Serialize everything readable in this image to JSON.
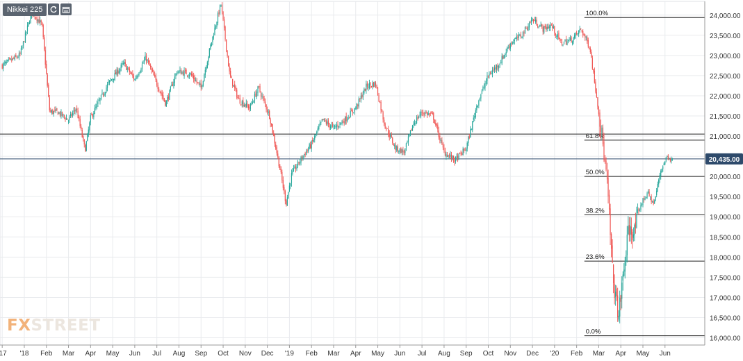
{
  "toolbar": {
    "title": "Nikkei 225",
    "refresh_icon": "refresh-icon",
    "calendar_icon": "calendar-icon"
  },
  "logo": {
    "part1": "FX",
    "part2": "STREET"
  },
  "colors": {
    "up": "#26a69a",
    "down": "#ef5350",
    "grid": "#e9ebee",
    "fib": "#222222",
    "price_line": "#2e4a6b",
    "price_badge": "#2e4a6b",
    "axis_text": "#333333"
  },
  "chart_data": {
    "type": "candlestick",
    "title": "Nikkei 225",
    "ylim": [
      15820,
      24340
    ],
    "y_ticks": [
      16000,
      16500,
      17000,
      17500,
      18000,
      18500,
      19000,
      19500,
      20000,
      20500,
      21000,
      21500,
      22000,
      22500,
      23000,
      23500,
      24000
    ],
    "y_tick_labels": [
      "16,000.00",
      "16,500.00",
      "17,000.00",
      "17,500.00",
      "18,000.00",
      "18,500.00",
      "19,000.00",
      "19,500.00",
      "20,000.00",
      "20,500.00",
      "21,000.00",
      "21,500.00",
      "22,000.00",
      "22,500.00",
      "23,000.00",
      "23,500.00",
      "24,000.00"
    ],
    "x_labels": [
      "'17",
      "'18",
      "Feb",
      "Mar",
      "Apr",
      "May",
      "Jun",
      "Jul",
      "Aug",
      "Sep",
      "Oct",
      "Nov",
      "Dec",
      "'19",
      "Feb",
      "Mar",
      "Apr",
      "May",
      "Jun",
      "Jul",
      "Aug",
      "Sep",
      "Oct",
      "Nov",
      "Dec",
      "'20",
      "Feb",
      "Mar",
      "Apr",
      "May",
      "Jun"
    ],
    "x_range_months": [
      -0.1,
      31.8
    ],
    "x_label_months": [
      0,
      1,
      2,
      3,
      4,
      5,
      6,
      7,
      8,
      9,
      10,
      11,
      12,
      13,
      14,
      15,
      16,
      17,
      18,
      19,
      20,
      21,
      22,
      23,
      24,
      25,
      26,
      27,
      28,
      29,
      30
    ],
    "trading_days_per_month": 21,
    "ohlc_anchors": [
      {
        "m": 0,
        "c": 22750
      },
      {
        "m": 0.8,
        "c": 23000
      },
      {
        "m": 1.35,
        "c": 24100
      },
      {
        "m": 1.8,
        "c": 23750
      },
      {
        "m": 2.15,
        "c": 21600
      },
      {
        "m": 2.5,
        "c": 21600
      },
      {
        "m": 3.0,
        "c": 21400
      },
      {
        "m": 3.35,
        "c": 21700
      },
      {
        "m": 3.75,
        "c": 20650
      },
      {
        "m": 4.0,
        "c": 21450
      },
      {
        "m": 4.8,
        "c": 22300
      },
      {
        "m": 5.5,
        "c": 22800
      },
      {
        "m": 6.0,
        "c": 22400
      },
      {
        "m": 6.5,
        "c": 22950
      },
      {
        "m": 7.0,
        "c": 22300
      },
      {
        "m": 7.4,
        "c": 21800
      },
      {
        "m": 7.9,
        "c": 22600
      },
      {
        "m": 8.5,
        "c": 22550
      },
      {
        "m": 9.0,
        "c": 22200
      },
      {
        "m": 9.5,
        "c": 23400
      },
      {
        "m": 9.9,
        "c": 24280
      },
      {
        "m": 10.3,
        "c": 22500
      },
      {
        "m": 10.7,
        "c": 21900
      },
      {
        "m": 11.2,
        "c": 21700
      },
      {
        "m": 11.6,
        "c": 22200
      },
      {
        "m": 12.1,
        "c": 21500
      },
      {
        "m": 12.5,
        "c": 20400
      },
      {
        "m": 12.85,
        "c": 19330
      },
      {
        "m": 13.1,
        "c": 20050
      },
      {
        "m": 13.6,
        "c": 20500
      },
      {
        "m": 14.0,
        "c": 20800
      },
      {
        "m": 14.5,
        "c": 21400
      },
      {
        "m": 15.0,
        "c": 21200
      },
      {
        "m": 15.5,
        "c": 21400
      },
      {
        "m": 16.0,
        "c": 21700
      },
      {
        "m": 16.5,
        "c": 22250
      },
      {
        "m": 16.9,
        "c": 22300
      },
      {
        "m": 17.3,
        "c": 21300
      },
      {
        "m": 17.8,
        "c": 20700
      },
      {
        "m": 18.2,
        "c": 20600
      },
      {
        "m": 18.6,
        "c": 21300
      },
      {
        "m": 19.0,
        "c": 21600
      },
      {
        "m": 19.5,
        "c": 21500
      },
      {
        "m": 20.0,
        "c": 20600
      },
      {
        "m": 20.5,
        "c": 20400
      },
      {
        "m": 21.0,
        "c": 20700
      },
      {
        "m": 21.5,
        "c": 21800
      },
      {
        "m": 22.0,
        "c": 22500
      },
      {
        "m": 22.5,
        "c": 22800
      },
      {
        "m": 23.0,
        "c": 23300
      },
      {
        "m": 23.5,
        "c": 23500
      },
      {
        "m": 24.0,
        "c": 23900
      },
      {
        "m": 24.5,
        "c": 23650
      },
      {
        "m": 24.85,
        "c": 23750
      },
      {
        "m": 25.3,
        "c": 23300
      },
      {
        "m": 25.8,
        "c": 23400
      },
      {
        "m": 26.2,
        "c": 23650
      },
      {
        "m": 26.6,
        "c": 23200
      },
      {
        "m": 26.9,
        "c": 22000
      },
      {
        "m": 27.15,
        "c": 21000
      },
      {
        "m": 27.4,
        "c": 19700
      },
      {
        "m": 27.65,
        "c": 17400
      },
      {
        "m": 27.9,
        "c": 16550
      },
      {
        "m": 28.1,
        "c": 17500
      },
      {
        "m": 28.35,
        "c": 18700
      },
      {
        "m": 28.6,
        "c": 18600
      },
      {
        "m": 28.9,
        "c": 19300
      },
      {
        "m": 29.2,
        "c": 19600
      },
      {
        "m": 29.5,
        "c": 19300
      },
      {
        "m": 29.8,
        "c": 20150
      },
      {
        "m": 30.1,
        "c": 20500
      },
      {
        "m": 30.35,
        "c": 20435
      }
    ],
    "fibonacci": [
      {
        "label": "100.0%",
        "value": 23940
      },
      {
        "label": "61.8%",
        "value": 20900
      },
      {
        "label": "50.0%",
        "value": 20000
      },
      {
        "label": "38.2%",
        "value": 19050
      },
      {
        "label": "23.6%",
        "value": 17900
      },
      {
        "label": "0.0%",
        "value": 16050
      }
    ],
    "fib_start_month": 26.35,
    "horizontal_lines": [
      21050,
      20435
    ],
    "last_price": 20435,
    "last_price_label": "20,435.00"
  }
}
